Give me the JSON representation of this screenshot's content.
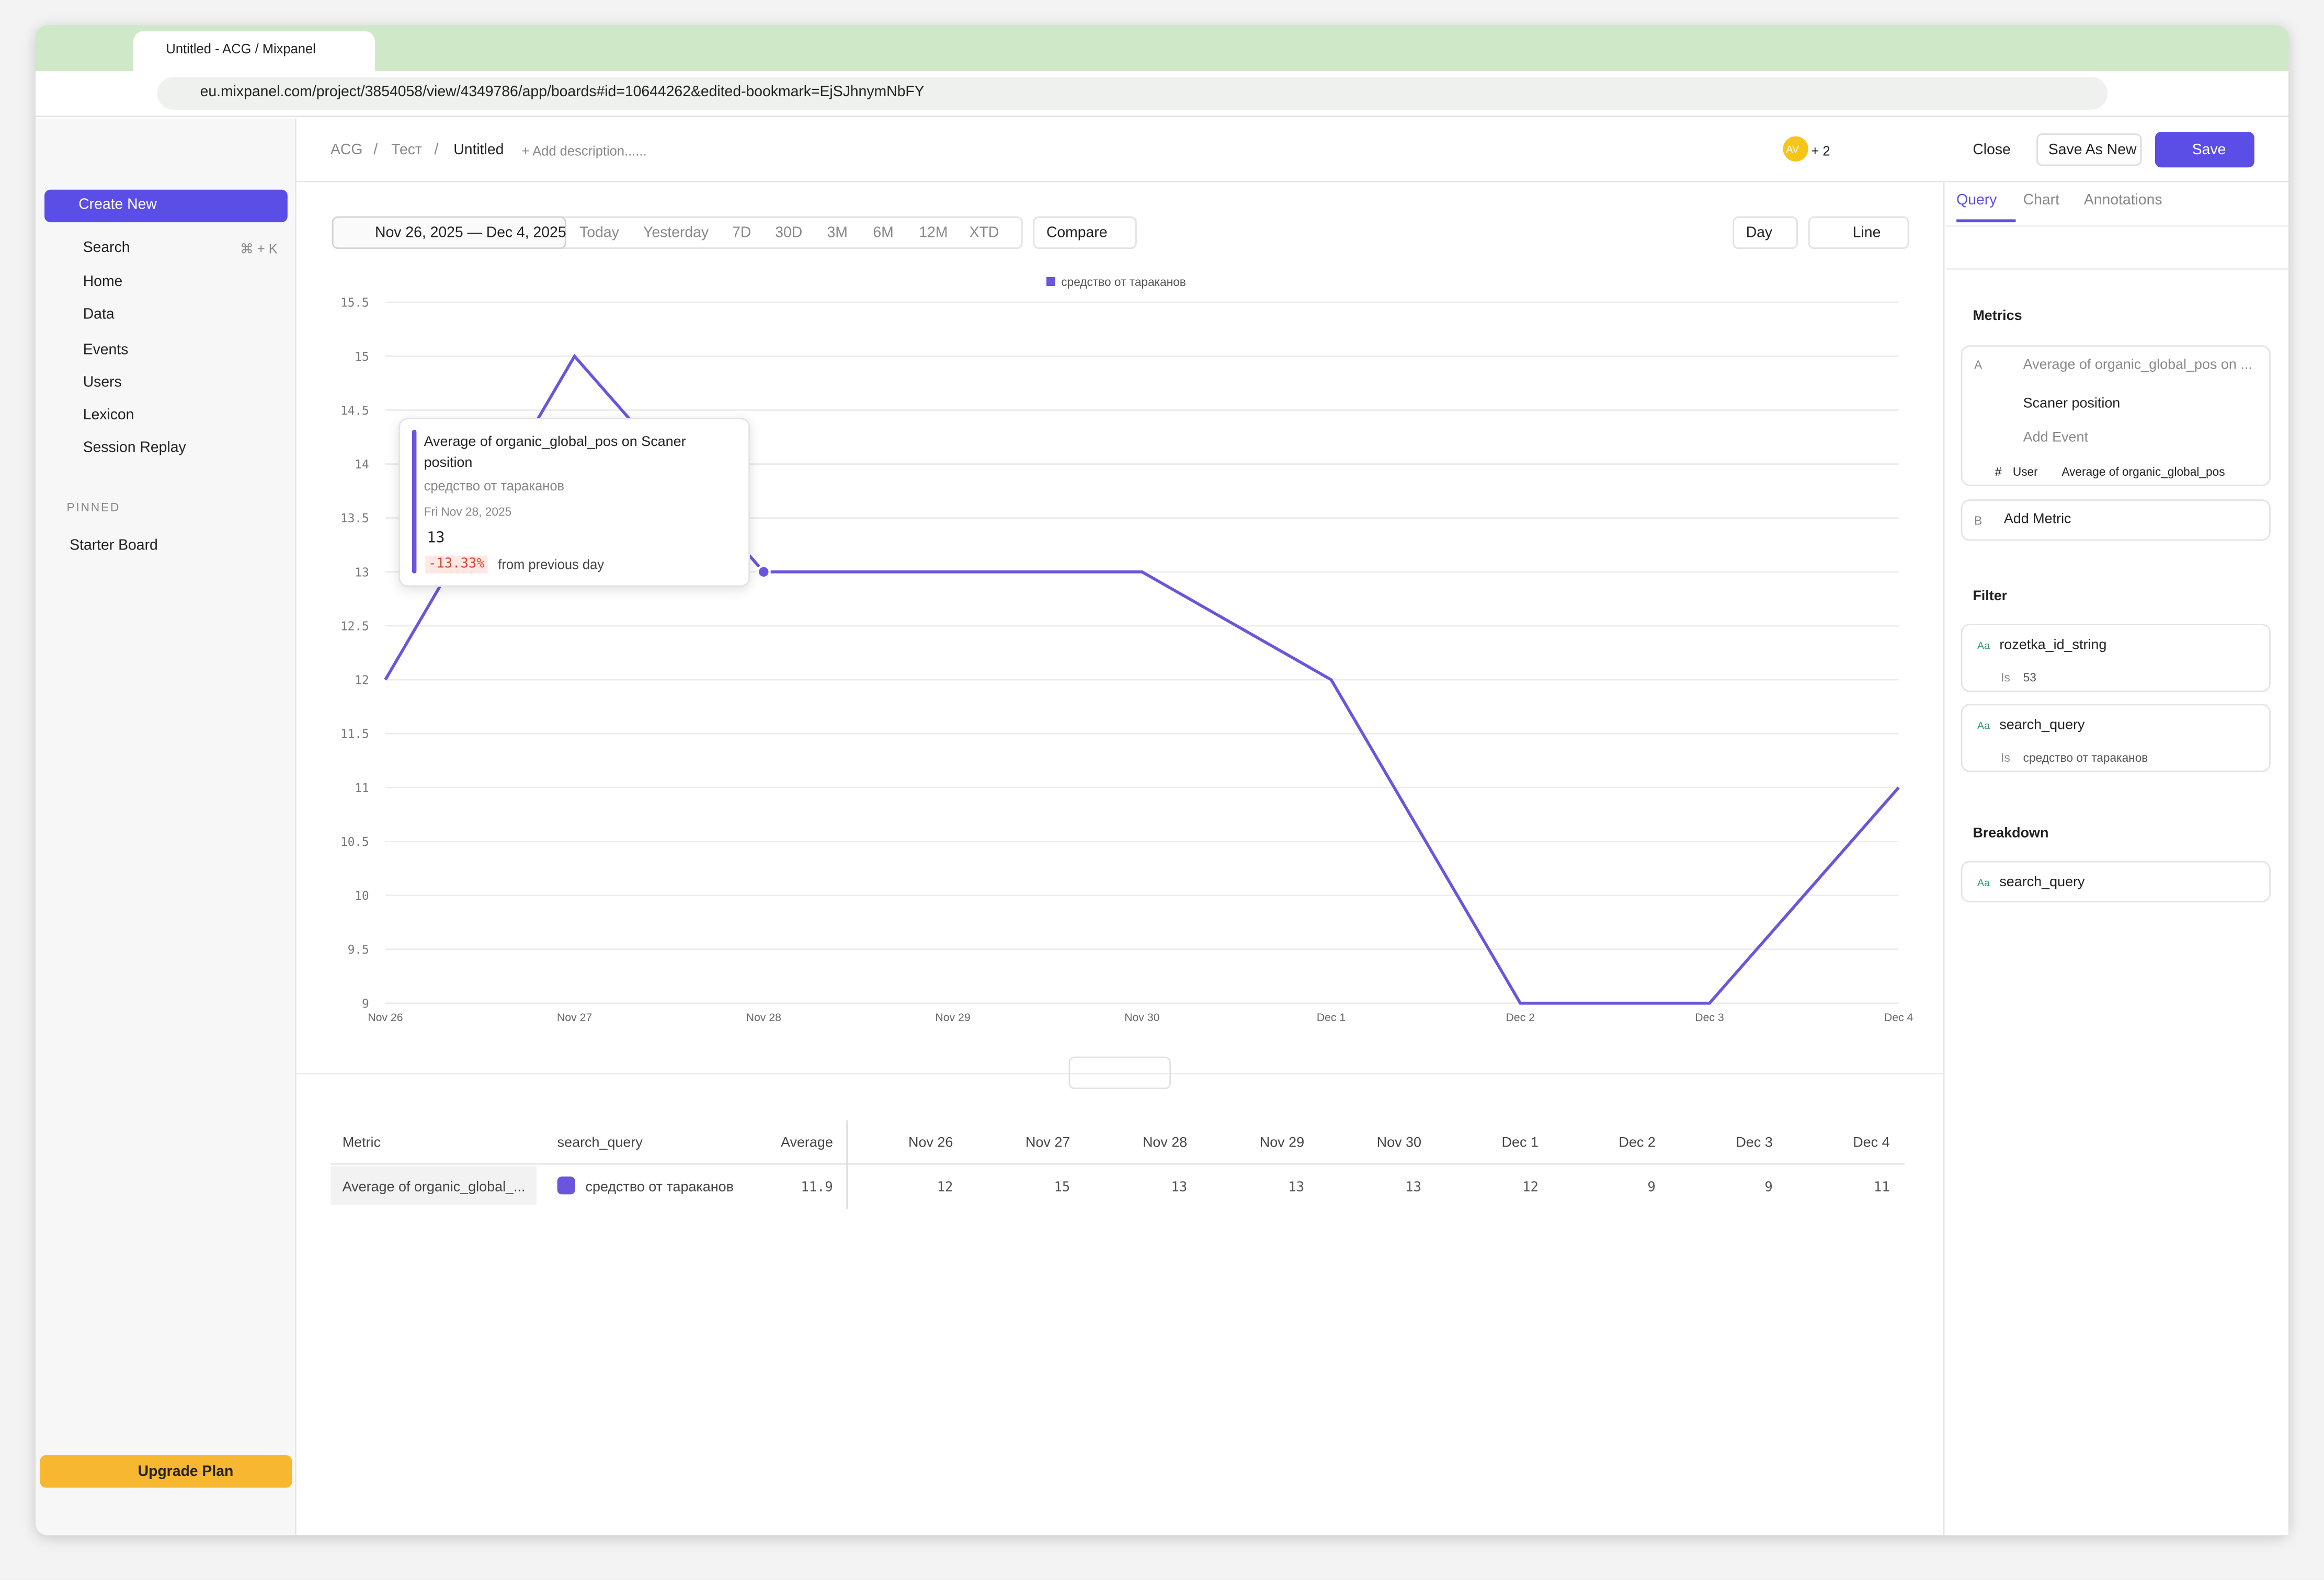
{
  "browser": {
    "tab_title": "Untitled - ACG / Mixpanel",
    "url": "eu.mixpanel.com/project/3854058/view/4349786/app/boards#id=10644262&edited-bookmark=EjSJhnymNbFY"
  },
  "sidebar": {
    "create_new": "Create New",
    "search": "Search",
    "search_shortcut": "⌘ + K",
    "nav": [
      "Home",
      "Data"
    ],
    "data_items": [
      "Events",
      "Users",
      "Lexicon"
    ],
    "session_replay": "Session Replay",
    "pinned_heading": "PINNED",
    "pinned": [
      "Starter Board"
    ],
    "upgrade": "Upgrade Plan"
  },
  "header": {
    "breadcrumb": [
      "ACG",
      "Тест",
      "Untitled"
    ],
    "separator": "/",
    "add_description": "+ Add description......",
    "avatar": "AV",
    "extra_users": "+ 2",
    "close": "Close",
    "save_as_new": "Save As New",
    "save": "Save"
  },
  "toolbar": {
    "date_range": "Nov 26, 2025 — Dec 4, 2025",
    "ranges": [
      "Today",
      "Yesterday",
      "7D",
      "30D",
      "3M",
      "6M",
      "12M",
      "XTD"
    ],
    "compare": "Compare",
    "interval": "Day",
    "chart_type": "Line"
  },
  "chart_data": {
    "type": "line",
    "x": [
      "Nov 26",
      "Nov 27",
      "Nov 28",
      "Nov 29",
      "Nov 30",
      "Dec 1",
      "Dec 2",
      "Dec 3",
      "Dec 4"
    ],
    "series": [
      {
        "name": "средство от тараканов",
        "color": "#6a55dc",
        "values": [
          12,
          15,
          13,
          13,
          13,
          12,
          9,
          9,
          11
        ]
      }
    ],
    "ylim": [
      9,
      15.5
    ],
    "yticks": [
      9,
      9.5,
      10,
      10.5,
      11,
      11.5,
      12,
      12.5,
      13,
      13.5,
      14,
      14.5,
      15,
      15.5
    ],
    "grid": true
  },
  "tooltip": {
    "title": "Average of organic_global_pos on Scaner position",
    "series": "средство от тараканов",
    "date": "Fri Nov 28, 2025",
    "value": 13,
    "change": "-13.33%",
    "change_text": "from previous day"
  },
  "table": {
    "headers": [
      "Metric",
      "search_query",
      "Average",
      "Nov 26",
      "Nov 27",
      "Nov 28",
      "Nov 29",
      "Nov 30",
      "Dec 1",
      "Dec 2",
      "Dec 3",
      "Dec 4"
    ],
    "rows": [
      [
        "Average of organic_global_...",
        "средство от тараканов",
        11.9,
        12,
        15,
        13,
        13,
        13,
        12,
        9,
        9,
        11
      ]
    ]
  },
  "panel": {
    "tabs": [
      "Query",
      "Chart",
      "Annotations"
    ],
    "metrics_heading": "Metrics",
    "metric": {
      "letter": "A",
      "label": "Average of organic_global_pos on ...",
      "event": "Scaner position",
      "add_event": "Add Event",
      "hash": "#",
      "user": "User",
      "property": "Average of organic_global_pos"
    },
    "add_metric": {
      "letter": "B",
      "label": "Add Metric"
    },
    "filter_heading": "Filter",
    "filters": [
      {
        "type": "Aa",
        "name": "rozetka_id_string",
        "op": "Is",
        "value": "53"
      },
      {
        "type": "Aa",
        "name": "search_query",
        "op": "Is",
        "value": "средство от тараканов"
      }
    ],
    "breakdown_heading": "Breakdown",
    "breakdown": [
      {
        "type": "Aa",
        "name": "search_query"
      }
    ]
  }
}
